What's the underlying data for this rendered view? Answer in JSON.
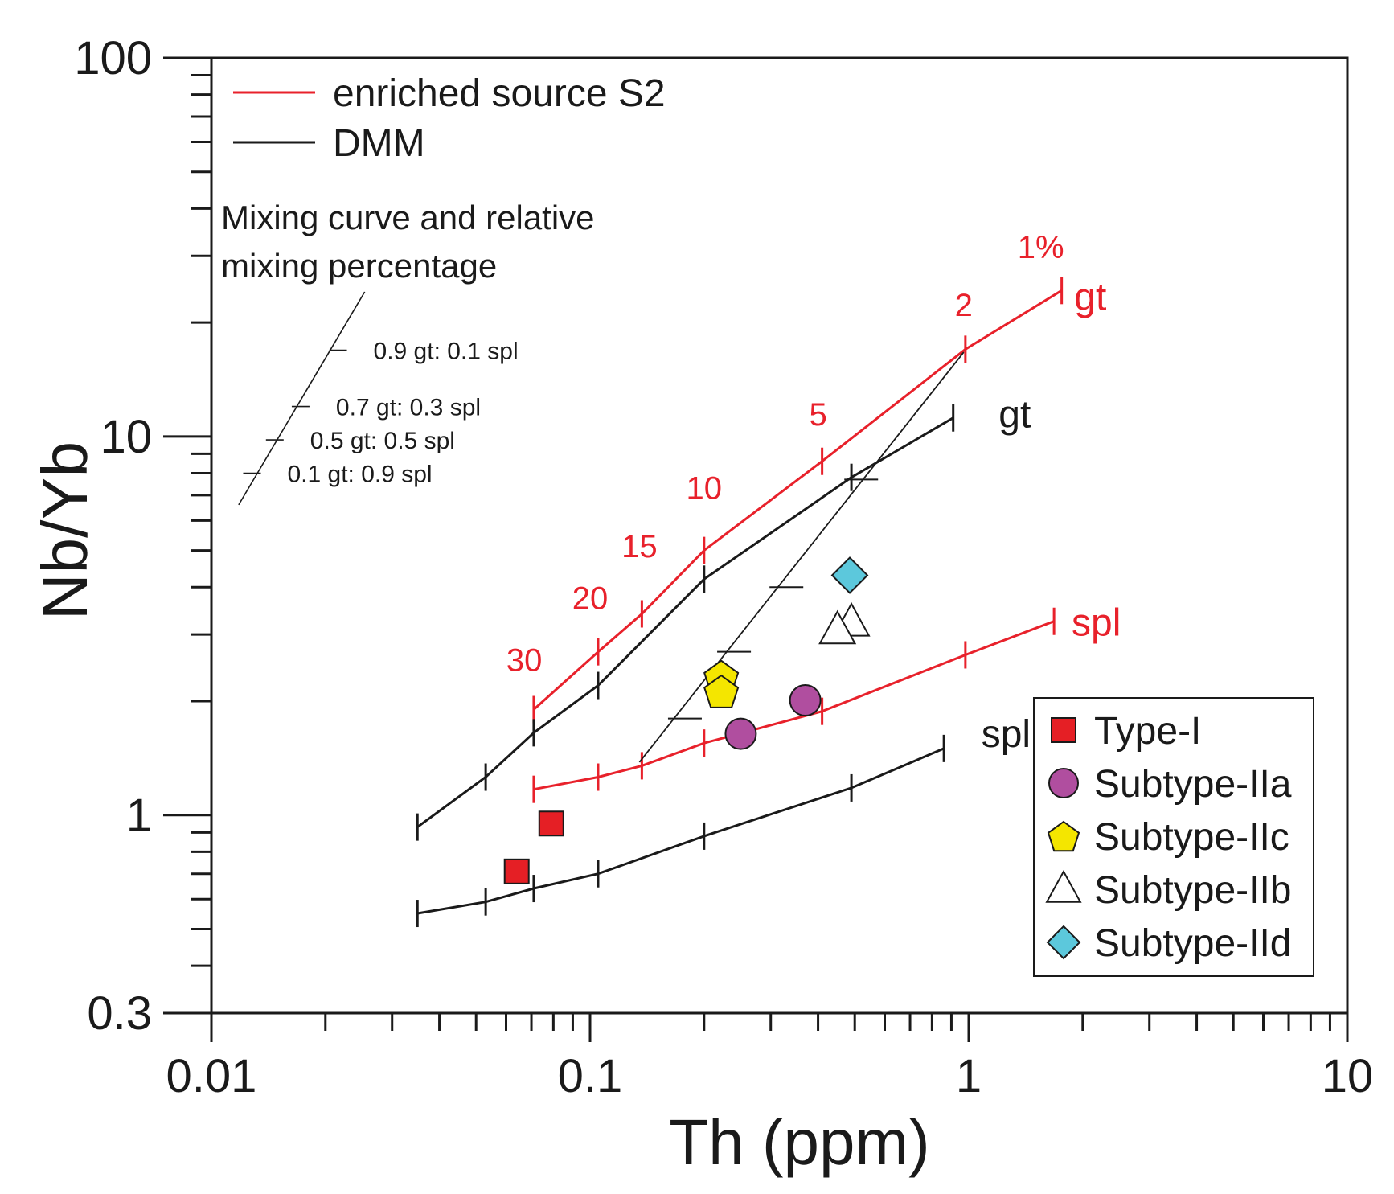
{
  "chart_data": {
    "type": "scatter",
    "xlabel": "Th (ppm)",
    "ylabel": "Nb/Yb",
    "xscale": "log",
    "yscale": "log",
    "xlim": [
      0.01,
      10
    ],
    "ylim": [
      0.3,
      100
    ],
    "x_ticks": [
      "0.01",
      "0.1",
      "1",
      "10"
    ],
    "y_ticks": [
      "0.3",
      "1",
      "10",
      "100"
    ],
    "colors": {
      "enriched": "#e8212b",
      "dmm": "#1a1a1a",
      "type1": "#e51f25",
      "subtypeIIa": "#b04e9f",
      "subtypeIIc": "#f4e600",
      "subtypeIIb": "#ffffff",
      "subtypeIId": "#5cc8dc"
    },
    "line_legend": [
      {
        "label": "enriched source S2",
        "color": "#e8212b"
      },
      {
        "label": "DMM",
        "color": "#1a1a1a"
      }
    ],
    "mixing_note": {
      "line1": "Mixing curve and relative",
      "line2": "mixing percentage"
    },
    "mixing_key": [
      {
        "label": "0.9 gt: 0.1 spl",
        "x": 0.0216,
        "y": 16.9
      },
      {
        "label": "0.7 gt: 0.3 spl",
        "x": 0.0172,
        "y": 12.0
      },
      {
        "label": "0.5 gt: 0.5 spl",
        "x": 0.0147,
        "y": 9.8
      },
      {
        "label": "0.1 gt: 0.9 spl",
        "x": 0.0128,
        "y": 8.0
      }
    ],
    "mixing_key_line": {
      "from": [
        0.0118,
        6.6
      ],
      "to": [
        0.0254,
        24.1
      ]
    },
    "lines": [
      {
        "name": "enriched-gt",
        "label": "gt",
        "source": "enriched",
        "points": [
          [
            0.071,
            1.9
          ],
          [
            0.105,
            2.7
          ],
          [
            0.137,
            3.4
          ],
          [
            0.2,
            5.0
          ],
          [
            0.41,
            8.6
          ],
          [
            0.98,
            17.0
          ],
          [
            1.76,
            24.3
          ]
        ]
      },
      {
        "name": "dmm-gt",
        "label": "gt",
        "source": "dmm",
        "points": [
          [
            0.035,
            0.93
          ],
          [
            0.053,
            1.26
          ],
          [
            0.071,
            1.65
          ],
          [
            0.105,
            2.2
          ],
          [
            0.2,
            4.2
          ],
          [
            0.49,
            7.8
          ],
          [
            0.91,
            11.2
          ]
        ]
      },
      {
        "name": "enriched-spl",
        "label": "spl",
        "source": "enriched",
        "points": [
          [
            0.071,
            1.17
          ],
          [
            0.105,
            1.26
          ],
          [
            0.137,
            1.35
          ],
          [
            0.2,
            1.55
          ],
          [
            0.41,
            1.88
          ],
          [
            0.98,
            2.65
          ],
          [
            1.68,
            3.25
          ]
        ]
      },
      {
        "name": "dmm-spl",
        "label": "spl",
        "source": "dmm",
        "points": [
          [
            0.035,
            0.55
          ],
          [
            0.053,
            0.59
          ],
          [
            0.071,
            0.64
          ],
          [
            0.105,
            0.7
          ],
          [
            0.2,
            0.88
          ],
          [
            0.49,
            1.18
          ],
          [
            0.86,
            1.5
          ]
        ]
      }
    ],
    "melting_percentages": [
      {
        "label": "1%",
        "x": 1.55,
        "y": 29.6
      },
      {
        "label": "2",
        "x": 0.97,
        "y": 20.8
      },
      {
        "label": "5",
        "x": 0.4,
        "y": 10.7
      },
      {
        "label": "10",
        "x": 0.2,
        "y": 6.85
      },
      {
        "label": "15",
        "x": 0.135,
        "y": 4.8
      },
      {
        "label": "20",
        "x": 0.1,
        "y": 3.5
      },
      {
        "label": "30",
        "x": 0.067,
        "y": 2.4
      }
    ],
    "mixing_line": {
      "from": [
        0.135,
        1.38
      ],
      "to": [
        0.97,
        16.7
      ],
      "ticks": [
        [
          0.178,
          1.8
        ],
        [
          0.24,
          2.7
        ],
        [
          0.33,
          4.0
        ],
        [
          0.52,
          7.7
        ]
      ]
    },
    "series": [
      {
        "name": "Type-I",
        "marker": "square",
        "color": "#e51f25",
        "points": [
          [
            0.079,
            0.95
          ],
          [
            0.064,
            0.71
          ]
        ]
      },
      {
        "name": "Subtype-IIa",
        "marker": "circle",
        "color": "#b04e9f",
        "points": [
          [
            0.25,
            1.64
          ],
          [
            0.37,
            2.01
          ]
        ]
      },
      {
        "name": "Subtype-IIc",
        "marker": "pentagon",
        "color": "#f4e600",
        "points": [
          [
            0.222,
            2.32
          ],
          [
            0.222,
            2.12
          ]
        ]
      },
      {
        "name": "Subtype-IIb",
        "marker": "triangle",
        "color": "#ffffff",
        "points": [
          [
            0.49,
            3.23
          ],
          [
            0.45,
            3.08
          ]
        ]
      },
      {
        "name": "Subtype-IId",
        "marker": "diamond",
        "color": "#5cc8dc",
        "points": [
          [
            0.485,
            4.3
          ]
        ]
      }
    ]
  }
}
